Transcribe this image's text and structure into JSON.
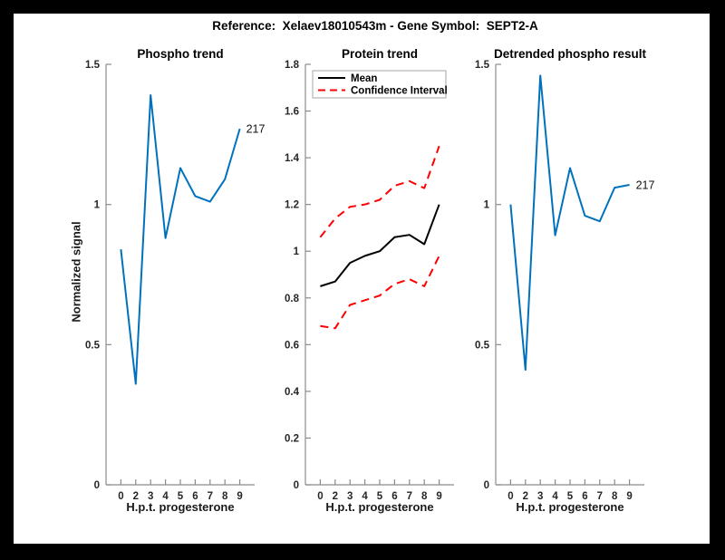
{
  "window": {
    "border_color": "#000000",
    "canvas_color": "#ffffff",
    "axis_line_color": "#8c8c8c",
    "tick_text_color": "#262626"
  },
  "header": {
    "title": "Reference:  Xelaev18010543m - Gene Symbol:  SEPT2-A"
  },
  "chart_data": [
    {
      "type": "line",
      "title": "Phospho trend",
      "xlabel": "H.p.t. progesterone",
      "ylabel": "Normalized signal",
      "ylim": [
        0,
        1.5
      ],
      "yticks": [
        0,
        0.5,
        1,
        1.5
      ],
      "ytick_labels": [
        "0",
        "0.5",
        "1",
        "1.5"
      ],
      "xtick_labels": [
        "0",
        "2",
        "3",
        "4",
        "5",
        "6",
        "7",
        "8",
        "9"
      ],
      "grid": false,
      "legend": null,
      "series": [
        {
          "name": "phospho-signal",
          "color": "#0072bd",
          "line_style": "solid",
          "line_width": 2,
          "values": [
            0.84,
            0.36,
            1.39,
            0.88,
            1.13,
            1.03,
            1.01,
            1.09,
            1.27
          ]
        }
      ],
      "end_label": "217"
    },
    {
      "type": "line",
      "title": "Protein trend",
      "xlabel": "H.p.t. progesterone",
      "ylabel": "",
      "ylim": [
        0,
        1.8
      ],
      "yticks": [
        0,
        0.2,
        0.4,
        0.6,
        0.8,
        1,
        1.2,
        1.4,
        1.6,
        1.8
      ],
      "ytick_labels": [
        "0",
        "0.2",
        "0.4",
        "0.6",
        "0.8",
        "1",
        "1.2",
        "1.4",
        "1.6",
        "1.8"
      ],
      "xtick_labels": [
        "0",
        "2",
        "3",
        "4",
        "5",
        "6",
        "7",
        "8",
        "9"
      ],
      "grid": false,
      "legend": {
        "position": "northwest",
        "entries": [
          {
            "label": "Mean",
            "color": "#000000",
            "line_style": "solid"
          },
          {
            "label": "Confidence Interval",
            "color": "#ff0000",
            "line_style": "dashed"
          }
        ]
      },
      "series": [
        {
          "name": "mean",
          "color": "#000000",
          "line_style": "solid",
          "line_width": 2,
          "values": [
            0.85,
            0.87,
            0.95,
            0.98,
            1.0,
            1.06,
            1.07,
            1.03,
            1.2
          ]
        },
        {
          "name": "confidence-interval-upper",
          "color": "#ff0000",
          "line_style": "dashed",
          "line_width": 2,
          "values": [
            1.06,
            1.14,
            1.19,
            1.2,
            1.22,
            1.28,
            1.3,
            1.27,
            1.45
          ]
        },
        {
          "name": "confidence-interval-lower",
          "color": "#ff0000",
          "line_style": "dashed",
          "line_width": 2,
          "values": [
            0.68,
            0.67,
            0.77,
            0.79,
            0.81,
            0.86,
            0.88,
            0.85,
            0.98
          ]
        }
      ],
      "end_label": null
    },
    {
      "type": "line",
      "title": "Detrended phospho result",
      "xlabel": "H.p.t. progesterone",
      "ylabel": "",
      "ylim": [
        0,
        1.5
      ],
      "yticks": [
        0,
        0.5,
        1,
        1.5
      ],
      "ytick_labels": [
        "0",
        "0.5",
        "1",
        "1.5"
      ],
      "xtick_labels": [
        "0",
        "2",
        "3",
        "4",
        "5",
        "6",
        "7",
        "8",
        "9"
      ],
      "grid": false,
      "legend": null,
      "series": [
        {
          "name": "detrended-phospho-signal",
          "color": "#0072bd",
          "line_style": "solid",
          "line_width": 2,
          "values": [
            1.0,
            0.41,
            1.46,
            0.89,
            1.13,
            0.96,
            0.94,
            1.06,
            1.07
          ]
        }
      ],
      "end_label": "217"
    }
  ]
}
